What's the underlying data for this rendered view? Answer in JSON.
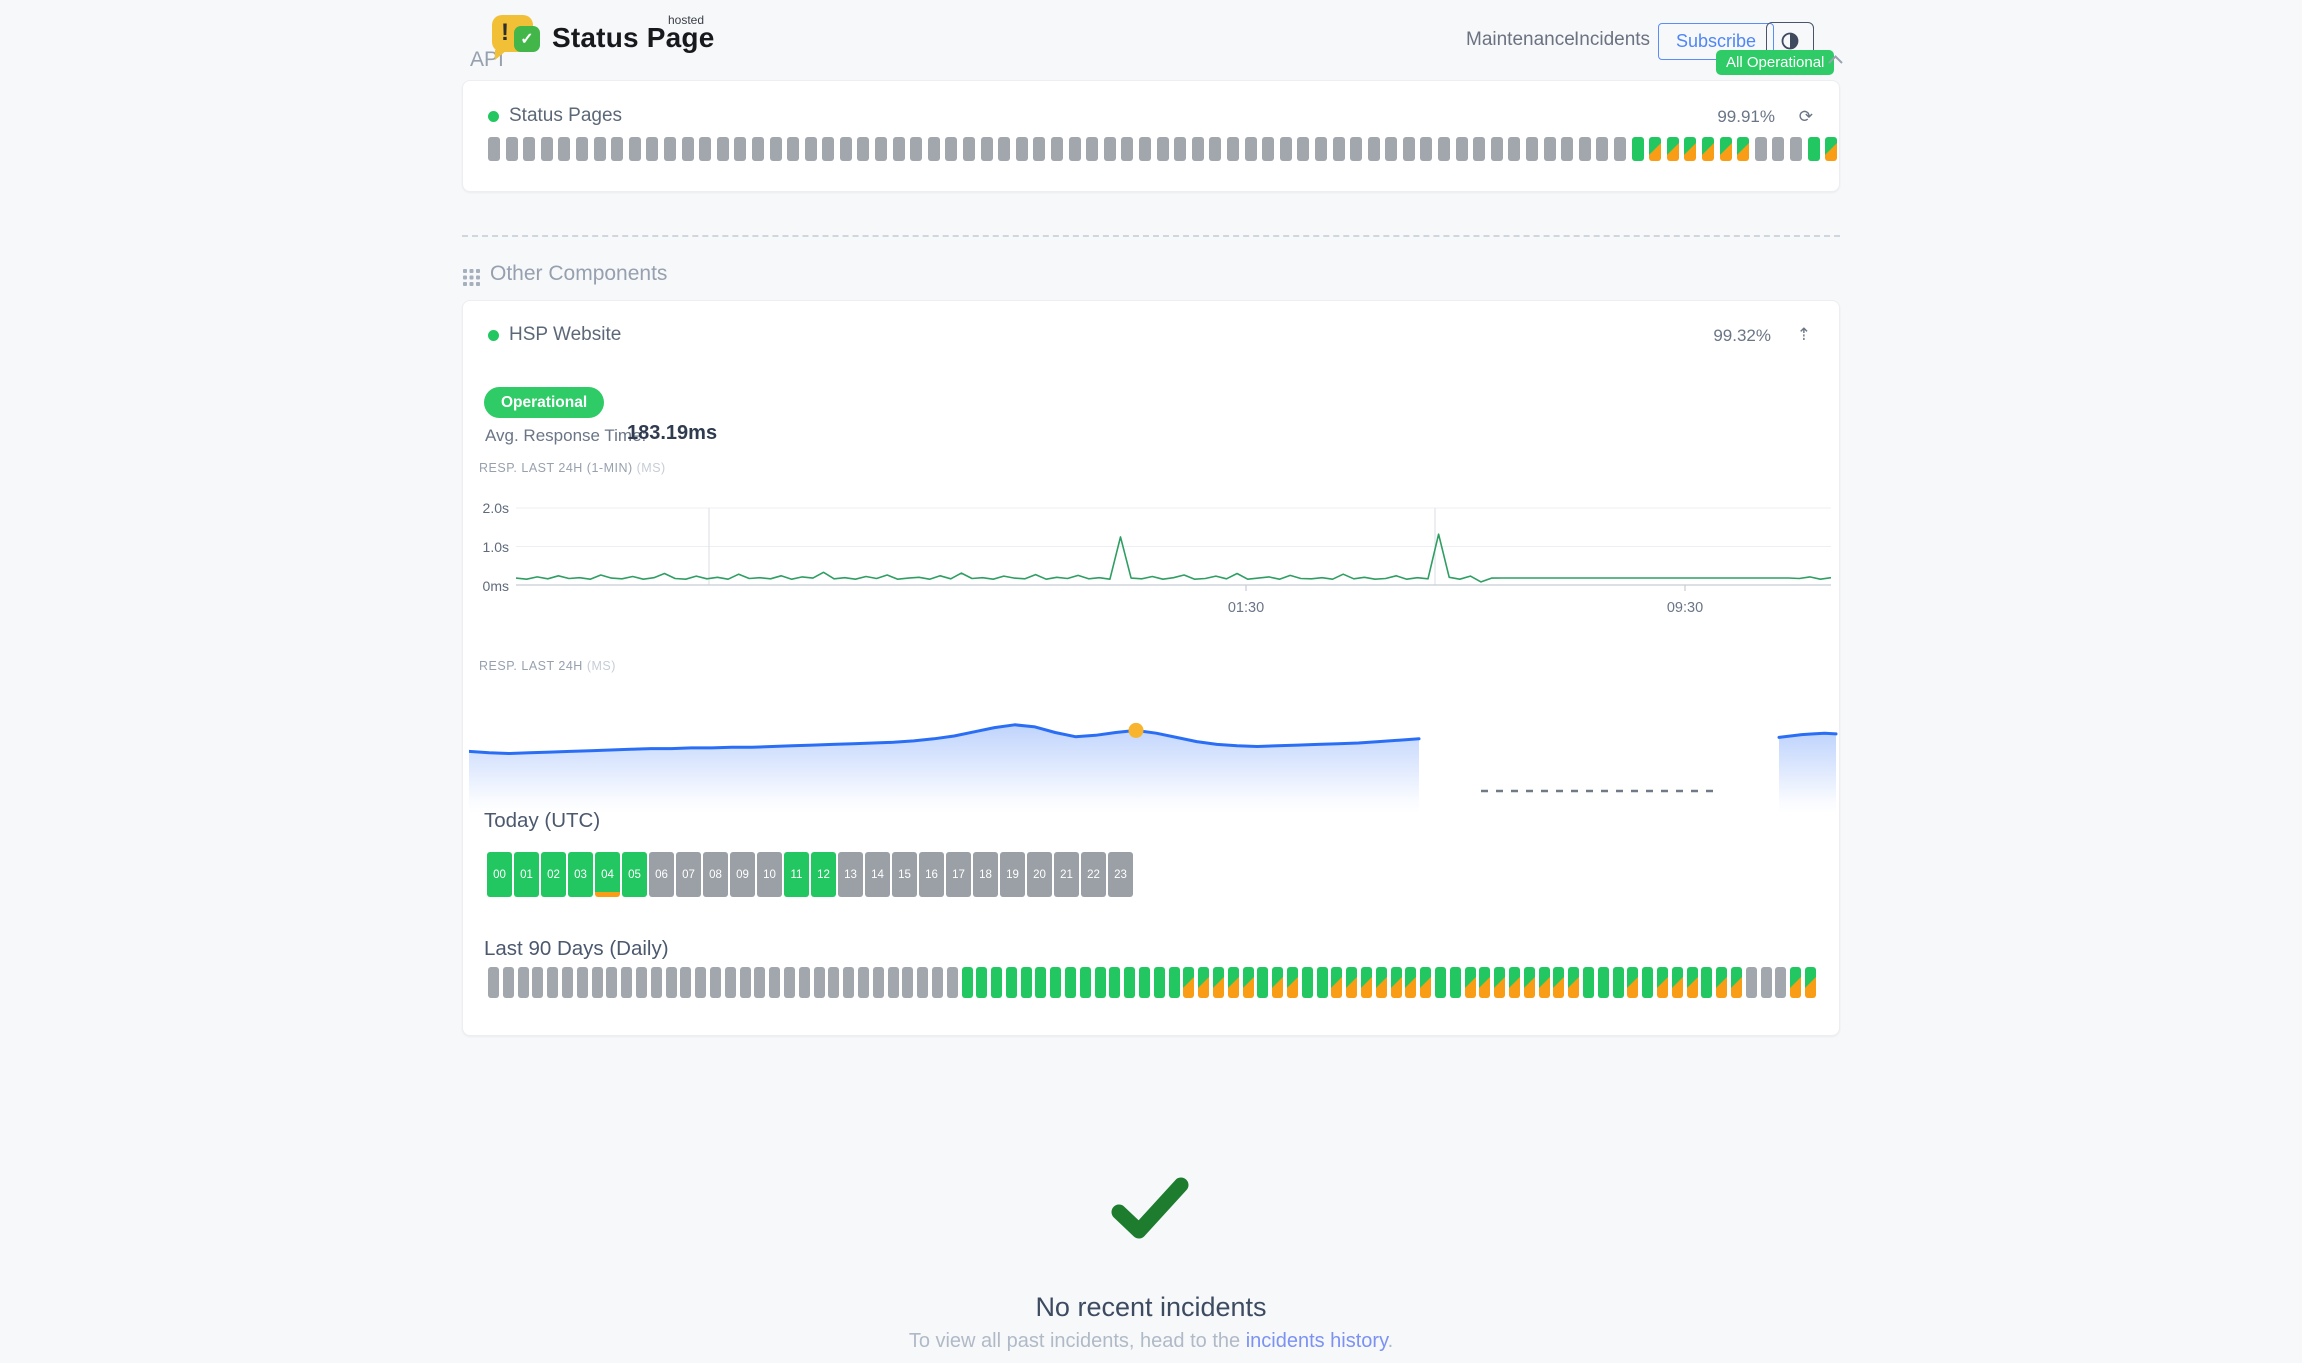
{
  "header": {
    "brand_title": "Status Page",
    "brand_superscript": "hosted",
    "logo_exclaim": "!",
    "logo_check": "✓",
    "nav": [
      {
        "label": "Maintenance"
      },
      {
        "label": "Incidents"
      }
    ],
    "subscribe_label": "Subscribe",
    "overall_status": "All Operational"
  },
  "colors": {
    "green": "#22c761",
    "badge_green": "#2fcb66",
    "dark_green": "#1d7c2e",
    "orange": "#f99d17",
    "gray_bar": "#a1a7ad",
    "chart_green": "#2f9e63",
    "chart_blue": "#2b6ef6",
    "marker_yellow": "#f8b42c",
    "link_blue": "#7b92f3"
  },
  "api_section": {
    "title": "API",
    "component": {
      "name": "Status Pages",
      "uptime": "99.91%",
      "refresh_icon": "⟳",
      "bar_runs": [
        [
          "nodata",
          65
        ],
        [
          "up",
          1
        ],
        [
          "degraded",
          6
        ],
        [
          "nodata",
          3
        ],
        [
          "up",
          1
        ],
        [
          "degraded",
          1
        ]
      ]
    }
  },
  "other_components": {
    "title": "Other Components",
    "component": {
      "name": "HSP Website",
      "uptime": "99.32%",
      "expand_icon": "⇡",
      "status_label": "Operational",
      "avg_response_label": "Avg. Response Time:",
      "avg_response_value": "183.19ms",
      "chart1_label": "RESP. LAST 24H (1-MIN)",
      "chart1_unit": "(MS)",
      "chart2_label": "RESP. LAST 24H",
      "chart2_unit": "(MS)",
      "today_label": "Today (UTC)",
      "hour_labels": [
        "00",
        "01",
        "02",
        "03",
        "04",
        "05",
        "06",
        "07",
        "08",
        "09",
        "10",
        "11",
        "12",
        "13",
        "14",
        "15",
        "16",
        "17",
        "18",
        "19",
        "20",
        "21",
        "22",
        "23"
      ],
      "hour_status_runs": [
        [
          "up",
          4
        ],
        [
          "up-partial",
          1
        ],
        [
          "up",
          1
        ],
        [
          "nodata",
          5
        ],
        [
          "up",
          2
        ],
        [
          "nodata",
          11
        ]
      ],
      "last90_label": "Last 90 Days (Daily)",
      "last90_runs": [
        [
          "nodata",
          32
        ],
        [
          "up",
          15
        ],
        [
          "degraded",
          5
        ],
        [
          "up",
          1
        ],
        [
          "degraded",
          2
        ],
        [
          "up",
          2
        ],
        [
          "degraded",
          7
        ],
        [
          "up",
          2
        ],
        [
          "degraded",
          8
        ],
        [
          "up",
          3
        ],
        [
          "degraded",
          1
        ],
        [
          "up",
          1
        ],
        [
          "degraded",
          3
        ],
        [
          "up",
          1
        ],
        [
          "degraded",
          2
        ],
        [
          "nodata",
          3
        ],
        [
          "degraded",
          2
        ]
      ]
    }
  },
  "incidents": {
    "title": "No recent incidents",
    "text_prefix": "To view all past incidents, head to the ",
    "link_label": "incidents history",
    "text_suffix": "."
  },
  "chart_data": [
    {
      "type": "line",
      "name": "response-time-last-24h-1min",
      "title": "RESP. LAST 24H (1-MIN)",
      "unit": "ms",
      "ylabels": [
        "2.0s",
        "1.0s",
        "0ms"
      ],
      "ylim_ms": [
        0,
        2000
      ],
      "xtick_labels": [
        "01:30",
        "09:30"
      ],
      "values_ms": [
        180,
        150,
        210,
        160,
        240,
        170,
        190,
        150,
        260,
        180,
        160,
        220,
        150,
        190,
        300,
        170,
        150,
        230,
        160,
        200,
        150,
        280,
        170,
        190,
        160,
        240,
        150,
        210,
        180,
        330,
        160,
        190,
        150,
        220,
        170,
        260,
        150,
        180,
        200,
        150,
        240,
        160,
        310,
        170,
        190,
        150,
        230,
        180,
        160,
        270,
        150,
        200,
        170,
        250,
        160,
        190,
        150,
        1250,
        180,
        160,
        220,
        150,
        190,
        260,
        150,
        170,
        230,
        160,
        300,
        150,
        180,
        210,
        150,
        250,
        170,
        160,
        190,
        150,
        280,
        160,
        200,
        150,
        170,
        240,
        150,
        190,
        160,
        1320,
        200,
        150,
        230,
        80,
        180,
        183,
        183,
        183,
        183,
        183,
        183,
        183,
        183,
        183,
        183,
        183,
        183,
        183,
        183,
        183,
        183,
        183,
        183,
        183,
        183,
        183,
        183,
        183,
        183,
        183,
        183,
        183,
        183,
        170,
        210,
        150,
        190
      ]
    },
    {
      "type": "area",
      "name": "response-time-last-24h",
      "title": "RESP. LAST 24H",
      "unit": "ms",
      "no_data_gap": true,
      "segments": [
        [
          168,
          166,
          165,
          166,
          167,
          168,
          169,
          170,
          171,
          172,
          172,
          173,
          173,
          174,
          174,
          175,
          176,
          177,
          178,
          179,
          180,
          181,
          183,
          186,
          190,
          196,
          202,
          206,
          203,
          195,
          189,
          191,
          195,
          198,
          194,
          188,
          182,
          178,
          176,
          175,
          176,
          177,
          178,
          179,
          180,
          182,
          184,
          186
        ],
        [
          188,
          190,
          192,
          193,
          194,
          193
        ]
      ],
      "marker": {
        "segment": 0,
        "index": 33
      }
    }
  ]
}
